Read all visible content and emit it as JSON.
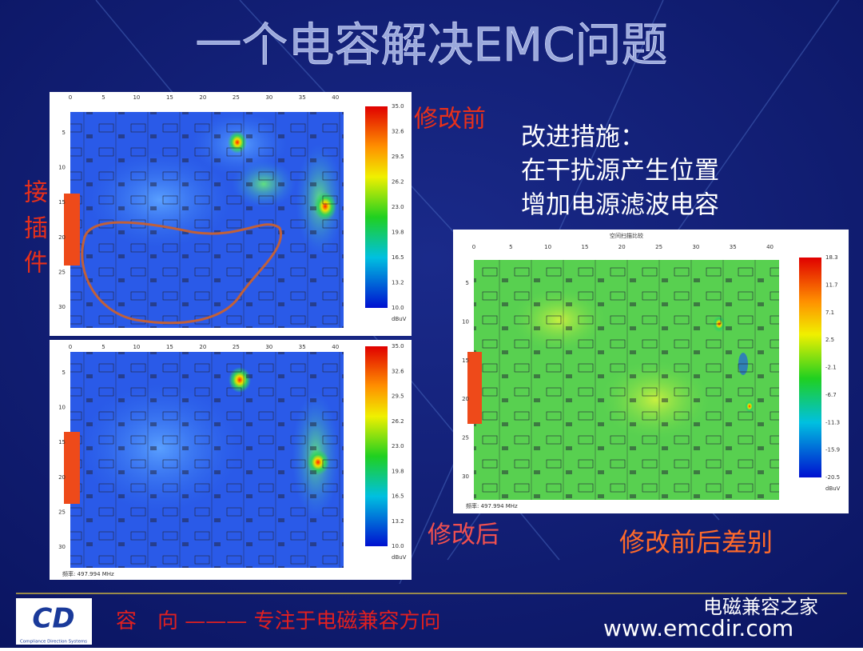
{
  "title": "一个电容解决EMC问题",
  "labels": {
    "before": "修改前",
    "after": "修改后",
    "difference": "修改前后差别",
    "connector": [
      "接",
      "插",
      "件"
    ]
  },
  "measures": [
    "改进措施：",
    "在干扰源产生位置",
    "增加电源滤波电容"
  ],
  "maps": {
    "top": {
      "x_ticks": [
        "0",
        "5",
        "10",
        "15",
        "20",
        "25",
        "30",
        "35",
        "40"
      ],
      "y_ticks": [
        "5",
        "10",
        "15",
        "20",
        "25",
        "30"
      ],
      "colorbar": [
        "35.0",
        "32.6",
        "29.5",
        "26.2",
        "23.0",
        "19.8",
        "16.5",
        "13.2",
        "10.0"
      ],
      "unit": "dBuV"
    },
    "bottom": {
      "x_ticks": [
        "0",
        "5",
        "10",
        "15",
        "20",
        "25",
        "30",
        "35",
        "40"
      ],
      "y_ticks": [
        "5",
        "10",
        "15",
        "20",
        "25",
        "30"
      ],
      "colorbar": [
        "35.0",
        "32.6",
        "29.5",
        "26.2",
        "23.0",
        "19.8",
        "16.5",
        "13.2",
        "10.0"
      ],
      "unit": "dBuV",
      "frequency": "频率: 497.994 MHz"
    },
    "diff": {
      "title": "空间扫描比较",
      "x_ticks": [
        "0",
        "5",
        "10",
        "15",
        "20",
        "25",
        "30",
        "35",
        "40"
      ],
      "y_ticks": [
        "5",
        "10",
        "15",
        "20",
        "25",
        "30"
      ],
      "colorbar": [
        "18.3",
        "11.7",
        "7.1",
        "2.5",
        "-2.1",
        "-6.7",
        "-11.3",
        "-15.9",
        "-20.5"
      ],
      "unit": "dBuV",
      "frequency": "频率: 497.994 MHz"
    }
  },
  "footer": {
    "logo": "CD",
    "company": "Compliance Direction Systems",
    "slogan": "容　向 ——— 专注于电磁兼容方向",
    "wechat": "电磁兼容之家",
    "url": "www.emcdir.com"
  }
}
